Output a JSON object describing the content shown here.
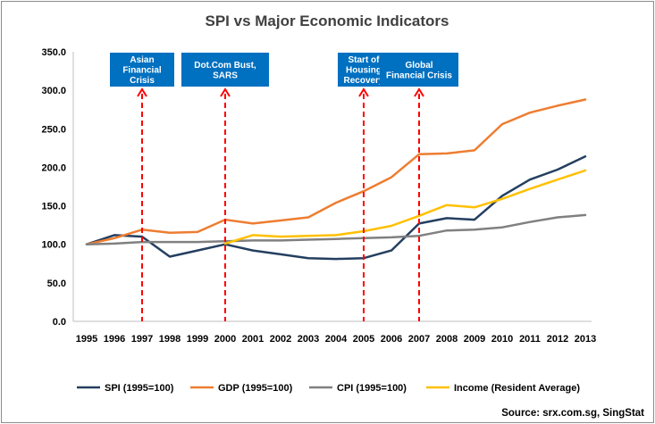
{
  "chart_data": {
    "type": "line",
    "title": "SPI vs Major Economic Indicators",
    "xlabel": "",
    "ylabel": "",
    "ylim": [
      0,
      350
    ],
    "yticks": [
      "0.0",
      "50.0",
      "100.0",
      "150.0",
      "200.0",
      "250.0",
      "300.0",
      "350.0"
    ],
    "ytick_values": [
      0,
      50,
      100,
      150,
      200,
      250,
      300,
      350
    ],
    "grid": false,
    "categories": [
      "1995",
      "1996",
      "1997",
      "1998",
      "1999",
      "2000",
      "2001",
      "2002",
      "2003",
      "2004",
      "2005",
      "2006",
      "2007",
      "2008",
      "2009",
      "2010",
      "2011",
      "2012",
      "2013"
    ],
    "series": [
      {
        "name": "SPI (1995=100)",
        "color": "#243F60",
        "values": [
          100,
          112,
          110,
          84,
          92,
          100,
          92,
          87,
          82,
          81,
          82,
          92,
          127,
          134,
          132,
          163,
          184,
          197,
          214
        ]
      },
      {
        "name": "GDP (1995=100)",
        "color": "#ED7D31",
        "values": [
          100,
          108,
          119,
          115,
          116,
          132,
          127,
          131,
          135,
          154,
          169,
          187,
          217,
          218,
          222,
          256,
          271,
          280,
          288
        ]
      },
      {
        "name": "CPI (1995=100)",
        "color": "#808080",
        "values": [
          100,
          101,
          103,
          103,
          103,
          104,
          105,
          105,
          106,
          107,
          108,
          109,
          111,
          118,
          119,
          122,
          129,
          135,
          138
        ]
      },
      {
        "name": "Income (Resident Average)",
        "color": "#FFC000",
        "values": [
          null,
          null,
          null,
          null,
          null,
          101,
          112,
          110,
          111,
          112,
          117,
          124,
          137,
          151,
          148,
          159,
          172,
          184,
          196
        ]
      }
    ],
    "annotations": [
      {
        "year": "1997",
        "label": "Asian Financial Crisis",
        "lines": [
          "Asian",
          "Financial",
          "Crisis"
        ]
      },
      {
        "year": "2000",
        "label": "Dot.Com Bust, SARS",
        "lines": [
          "Dot.Com Bust,",
          "SARS"
        ]
      },
      {
        "year": "2005",
        "label": "Start of Housing Recovery",
        "lines": [
          "Start of",
          "Housing",
          "Recovery"
        ]
      },
      {
        "year": "2007",
        "label": "Global Financial Crisis",
        "lines": [
          "Global",
          "Financial Crisis"
        ]
      }
    ],
    "annotation_color": "#0070C0",
    "marker_line_color": "#FF0000",
    "legend": "bottom",
    "source": "Source: srx.com.sg, SingStat"
  }
}
